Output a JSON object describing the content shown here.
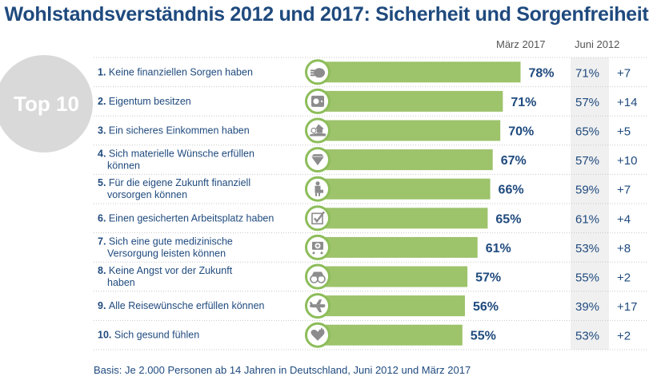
{
  "title": "Wohlstandsverständnis 2012 und 2017: Sicherheit und Sorgenfreiheit",
  "badge": "Top 10",
  "columns": {
    "current": "März 2017",
    "previous": "Juni 2012"
  },
  "footnote": "Basis: Je 2.000 Personen ab 14 Jahren in Deutschland, Juni 2012 und März 2017",
  "colors": {
    "bar": "#9dc36b",
    "ring": "#8dbd5a",
    "icon": "#8c8c8c",
    "text": "#1f4a7e",
    "positive_highlight": "#ff0000"
  },
  "chart_data": {
    "type": "bar",
    "orientation": "horizontal",
    "title": "Wohlstandsverständnis 2012 und 2017: Sicherheit und Sorgenfreiheit",
    "xlabel": "",
    "ylabel": "",
    "xlim": [
      0,
      100
    ],
    "unit": "%",
    "categories": [
      {
        "rank": "1.",
        "lines": [
          "Keine finanziellen Sorgen haben"
        ],
        "icon": "purse-icon"
      },
      {
        "rank": "2.",
        "lines": [
          "Eigentum besitzen"
        ],
        "icon": "safe-icon"
      },
      {
        "rank": "3.",
        "lines": [
          "Ein sicheres Einkommen haben"
        ],
        "icon": "income-house-icon"
      },
      {
        "rank": "4.",
        "lines": [
          "Sich materielle Wünsche erfüllen",
          "können"
        ],
        "icon": "diamond-icon"
      },
      {
        "rank": "5.",
        "lines": [
          "Für die eigene Zukunft finanziell",
          "vorsorgen können"
        ],
        "icon": "businessman-icon"
      },
      {
        "rank": "6.",
        "lines": [
          "Einen gesicherten Arbeitsplatz haben"
        ],
        "icon": "checkbox-icon"
      },
      {
        "rank": "7.",
        "lines": [
          "Sich eine gute medizinische",
          "Versorgung leisten können"
        ],
        "icon": "medical-cart-icon"
      },
      {
        "rank": "8.",
        "lines": [
          "Keine Angst vor der Zukunft",
          "haben"
        ],
        "icon": "binoculars-icon"
      },
      {
        "rank": "9.",
        "lines": [
          "Alle Reisewünsche erfüllen können"
        ],
        "icon": "airplane-icon"
      },
      {
        "rank": "10.",
        "lines": [
          "Sich gesund fühlen"
        ],
        "icon": "heart-plus-icon"
      }
    ],
    "series": [
      {
        "name": "März 2017",
        "values": [
          78,
          71,
          70,
          67,
          66,
          65,
          61,
          57,
          56,
          55
        ]
      },
      {
        "name": "Juni 2012",
        "values": [
          71,
          57,
          65,
          57,
          59,
          61,
          53,
          55,
          39,
          53
        ]
      }
    ],
    "change": [
      "+7",
      "+14",
      "+5",
      "+10",
      "+7",
      "+4",
      "+8",
      "+2",
      "+17",
      "+2"
    ],
    "change_highlighted": [
      false,
      true,
      false,
      true,
      false,
      false,
      false,
      false,
      true,
      false
    ],
    "grid": false,
    "legend": "none"
  }
}
